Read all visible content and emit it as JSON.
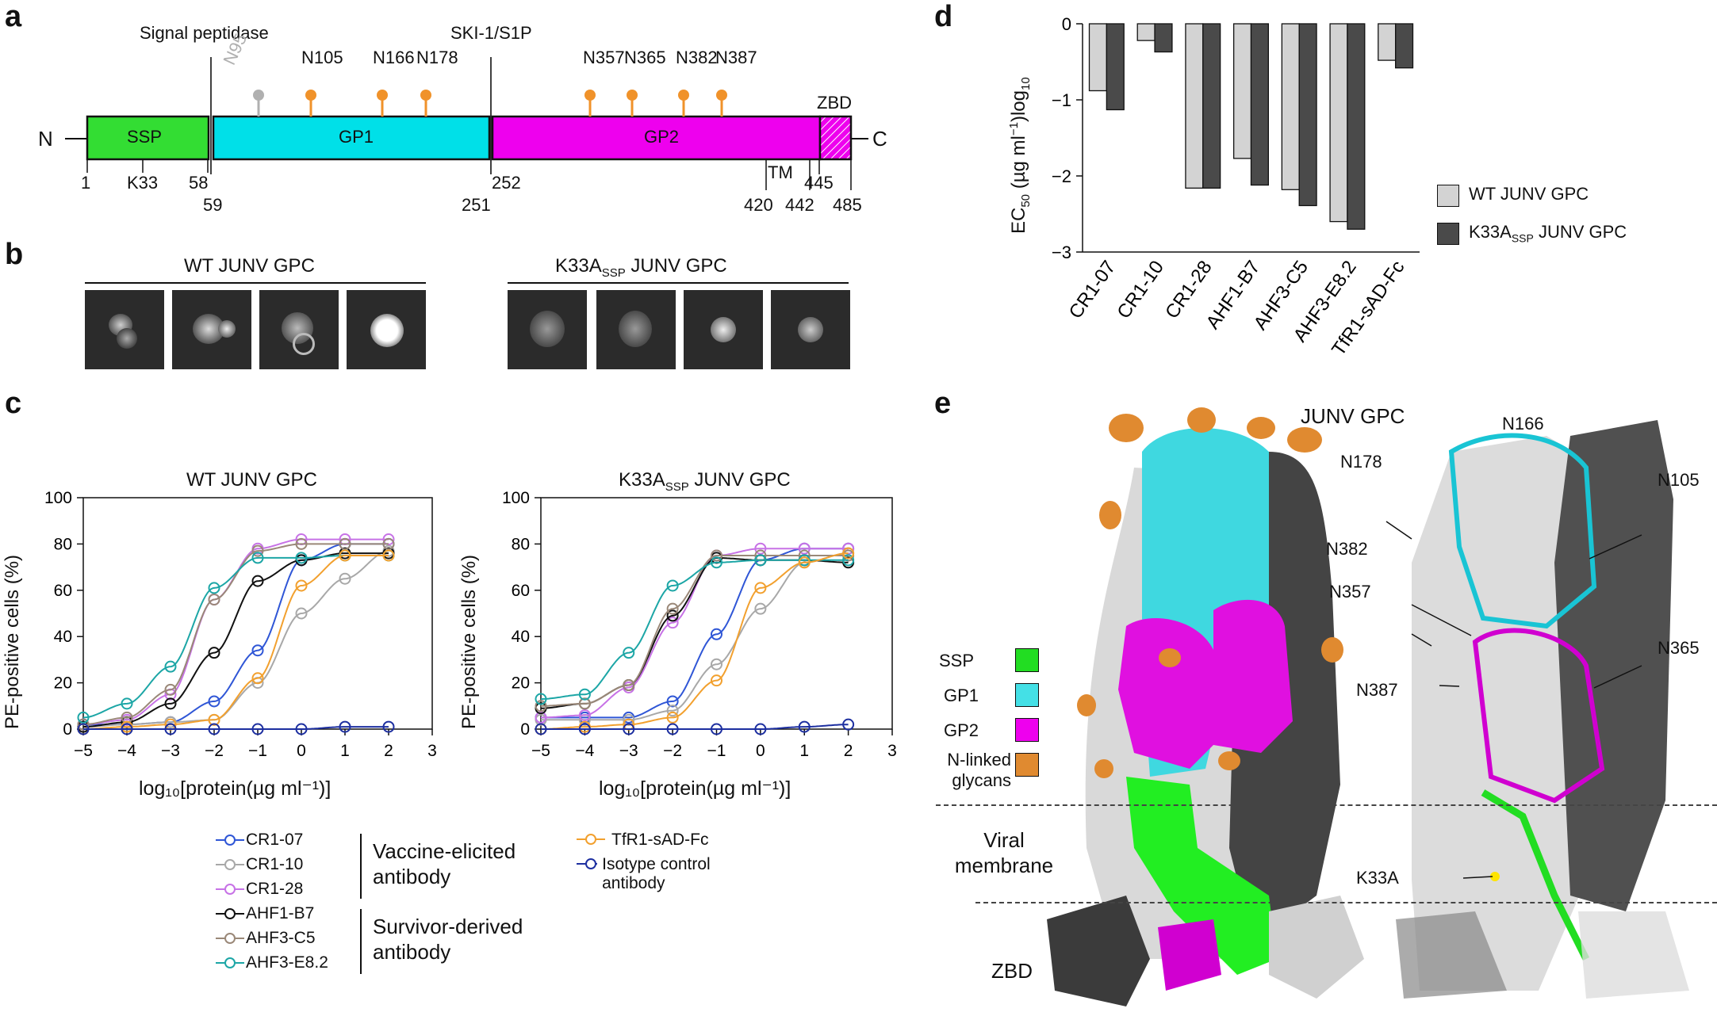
{
  "panels": {
    "a": "a",
    "b": "b",
    "c": "c",
    "d": "d",
    "e": "e"
  },
  "panel_a": {
    "n_term": "N",
    "c_term": "C",
    "cleavage1": "Signal peptidase",
    "cleavage2": "SKI-1/S1P",
    "domains": [
      {
        "label": "SSP",
        "color": "#33dd33"
      },
      {
        "label": "GP1",
        "color": "#00e0e8"
      },
      {
        "label": "GP2",
        "color": "#ee00ee"
      }
    ],
    "zbd": "ZBD",
    "tm": "TM",
    "glycans": [
      {
        "label": "N95",
        "color": "#b0b0b0"
      },
      {
        "label": "N105",
        "color": "#f0922a"
      },
      {
        "label": "N166",
        "color": "#f0922a"
      },
      {
        "label": "N178",
        "color": "#f0922a"
      },
      {
        "label": "N357",
        "color": "#f0922a"
      },
      {
        "label": "N365",
        "color": "#f0922a"
      },
      {
        "label": "N382",
        "color": "#f0922a"
      },
      {
        "label": "N387",
        "color": "#f0922a"
      }
    ],
    "positions": [
      "1",
      "K33",
      "58",
      "59",
      "251",
      "252",
      "420",
      "442",
      "445",
      "485"
    ]
  },
  "panel_b": {
    "title_left": "WT JUNV GPC",
    "title_right_main": "K33A",
    "title_right_sub": "SSP",
    "title_right_tail": " JUNV GPC"
  },
  "panel_c": {
    "left_title": "WT JUNV GPC",
    "right_title_main": "K33A",
    "right_title_sub": "SSP",
    "right_title_tail": " JUNV GPC",
    "ylabel": "PE-positive cells (%)",
    "xlabel": "log₁₀[protein(µg ml⁻¹)]",
    "xticks": [
      "−5",
      "−4",
      "−3",
      "−2",
      "−1",
      "0",
      "1",
      "2",
      "3"
    ],
    "yticks": [
      "0",
      "20",
      "40",
      "60",
      "80",
      "100"
    ],
    "legend": [
      {
        "name": "CR1-07",
        "color": "#2f56d6"
      },
      {
        "name": "CR1-10",
        "color": "#a8a8a8"
      },
      {
        "name": "CR1-28",
        "color": "#c772e6"
      },
      {
        "name": "AHF1-B7",
        "color": "#111111"
      },
      {
        "name": "AHF3-C5",
        "color": "#9a8878"
      },
      {
        "name": "AHF3-E8.2",
        "color": "#1ca6a6"
      },
      {
        "name": "TfR1-sAD-Fc",
        "color": "#f2a02e"
      },
      {
        "name": "Isotype control antibody",
        "color": "#1d2fa0"
      }
    ],
    "group1": "Vaccine-elicited antibody",
    "group2": "Survivor-derived antibody"
  },
  "chart_data": [
    {
      "type": "line",
      "title": "WT JUNV GPC",
      "xlabel": "log10[protein(µg ml−1)]",
      "ylabel": "PE-positive cells (%)",
      "xlim": [
        -5,
        3
      ],
      "ylim": [
        0,
        100
      ],
      "x": [
        -5,
        -4,
        -3,
        -2,
        -1,
        0,
        1,
        2
      ],
      "series": [
        {
          "name": "CR1-07",
          "values": [
            2,
            2,
            3,
            12,
            34,
            73,
            80,
            80
          ]
        },
        {
          "name": "CR1-10",
          "values": [
            1,
            2,
            3,
            4,
            20,
            50,
            65,
            77
          ]
        },
        {
          "name": "CR1-28",
          "values": [
            2,
            4,
            15,
            56,
            78,
            82,
            82,
            82
          ]
        },
        {
          "name": "AHF1-B7",
          "values": [
            1,
            3,
            11,
            33,
            64,
            73,
            76,
            76
          ]
        },
        {
          "name": "AHF3-C5",
          "values": [
            2,
            5,
            17,
            56,
            77,
            80,
            80,
            80
          ]
        },
        {
          "name": "AHF3-E8.2",
          "values": [
            5,
            11,
            27,
            61,
            74,
            74,
            75,
            75
          ]
        },
        {
          "name": "TfR1-sAD-Fc",
          "values": [
            0,
            1,
            2,
            4,
            22,
            62,
            75,
            75
          ]
        },
        {
          "name": "Isotype control antibody",
          "values": [
            0,
            0,
            0,
            0,
            0,
            0,
            1,
            1
          ]
        }
      ]
    },
    {
      "type": "line",
      "title": "K33A SSP JUNV GPC",
      "xlabel": "log10[protein(µg ml−1)]",
      "ylabel": "PE-positive cells (%)",
      "xlim": [
        -5,
        3
      ],
      "ylim": [
        0,
        100
      ],
      "x": [
        -5,
        -4,
        -3,
        -2,
        -1,
        0,
        1,
        2
      ],
      "series": [
        {
          "name": "CR1-07",
          "values": [
            5,
            5,
            5,
            12,
            41,
            73,
            78,
            78
          ]
        },
        {
          "name": "CR1-10",
          "values": [
            4,
            4,
            4,
            8,
            28,
            52,
            72,
            76
          ]
        },
        {
          "name": "CR1-28",
          "values": [
            5,
            6,
            18,
            46,
            75,
            78,
            78,
            78
          ]
        },
        {
          "name": "AHF1-B7",
          "values": [
            9,
            11,
            19,
            49,
            74,
            73,
            73,
            72
          ]
        },
        {
          "name": "AHF3-C5",
          "values": [
            10,
            11,
            19,
            52,
            75,
            75,
            75,
            75
          ]
        },
        {
          "name": "AHF3-E8.2",
          "values": [
            13,
            15,
            33,
            62,
            72,
            73,
            73,
            73
          ]
        },
        {
          "name": "TfR1-sAD-Fc",
          "values": [
            0,
            1,
            2,
            5,
            21,
            61,
            72,
            76
          ]
        },
        {
          "name": "Isotype control antibody",
          "values": [
            0,
            0,
            0,
            0,
            0,
            0,
            1,
            2
          ]
        }
      ]
    },
    {
      "type": "bar",
      "title": "",
      "ylabel": "EC50 (µg ml−1)log10",
      "ylim": [
        -3,
        0
      ],
      "categories": [
        "CR1-07",
        "CR1-10",
        "CR1-28",
        "AHF1-B7",
        "AHF3-C5",
        "AHF3-E8.2",
        "TfR1-sAD-Fc"
      ],
      "series": [
        {
          "name": "WT JUNV GPC",
          "values": [
            -0.88,
            -0.22,
            -2.16,
            -1.77,
            -2.18,
            -2.6,
            -0.48
          ]
        },
        {
          "name": "K33ASSP JUNV GPC",
          "values": [
            -1.13,
            -0.37,
            -2.16,
            -2.12,
            -2.39,
            -2.7,
            -0.58
          ]
        }
      ]
    }
  ],
  "panel_d": {
    "ylabel_main": "EC",
    "ylabel_sub": "50",
    "ylabel_rest": " (µg ml",
    "ylabel_sup": "−1",
    "ylabel_end": ")log",
    "ylabel_sub2": "10",
    "yticks": [
      "0",
      "−1",
      "−2",
      "−3"
    ],
    "legend1": "WT JUNV GPC",
    "legend2_main": "K33A",
    "legend2_sub": "SSP",
    "legend2_tail": " JUNV GPC",
    "bar_colors": [
      "#d3d3d3",
      "#4a4a4a"
    ]
  },
  "panel_e": {
    "title": "JUNV GPC",
    "legend": [
      {
        "label": "SSP",
        "color": "#22dd22"
      },
      {
        "label": "GP1",
        "color": "#44e0e6"
      },
      {
        "label": "GP2",
        "color": "#ee00ee"
      },
      {
        "label": "N-linked glycans",
        "color": "#e08a30"
      }
    ],
    "membrane": "Viral membrane",
    "zbd": "ZBD",
    "sites": [
      "N166",
      "N178",
      "N105",
      "N382",
      "N357",
      "N365",
      "N387",
      "K33A"
    ]
  }
}
